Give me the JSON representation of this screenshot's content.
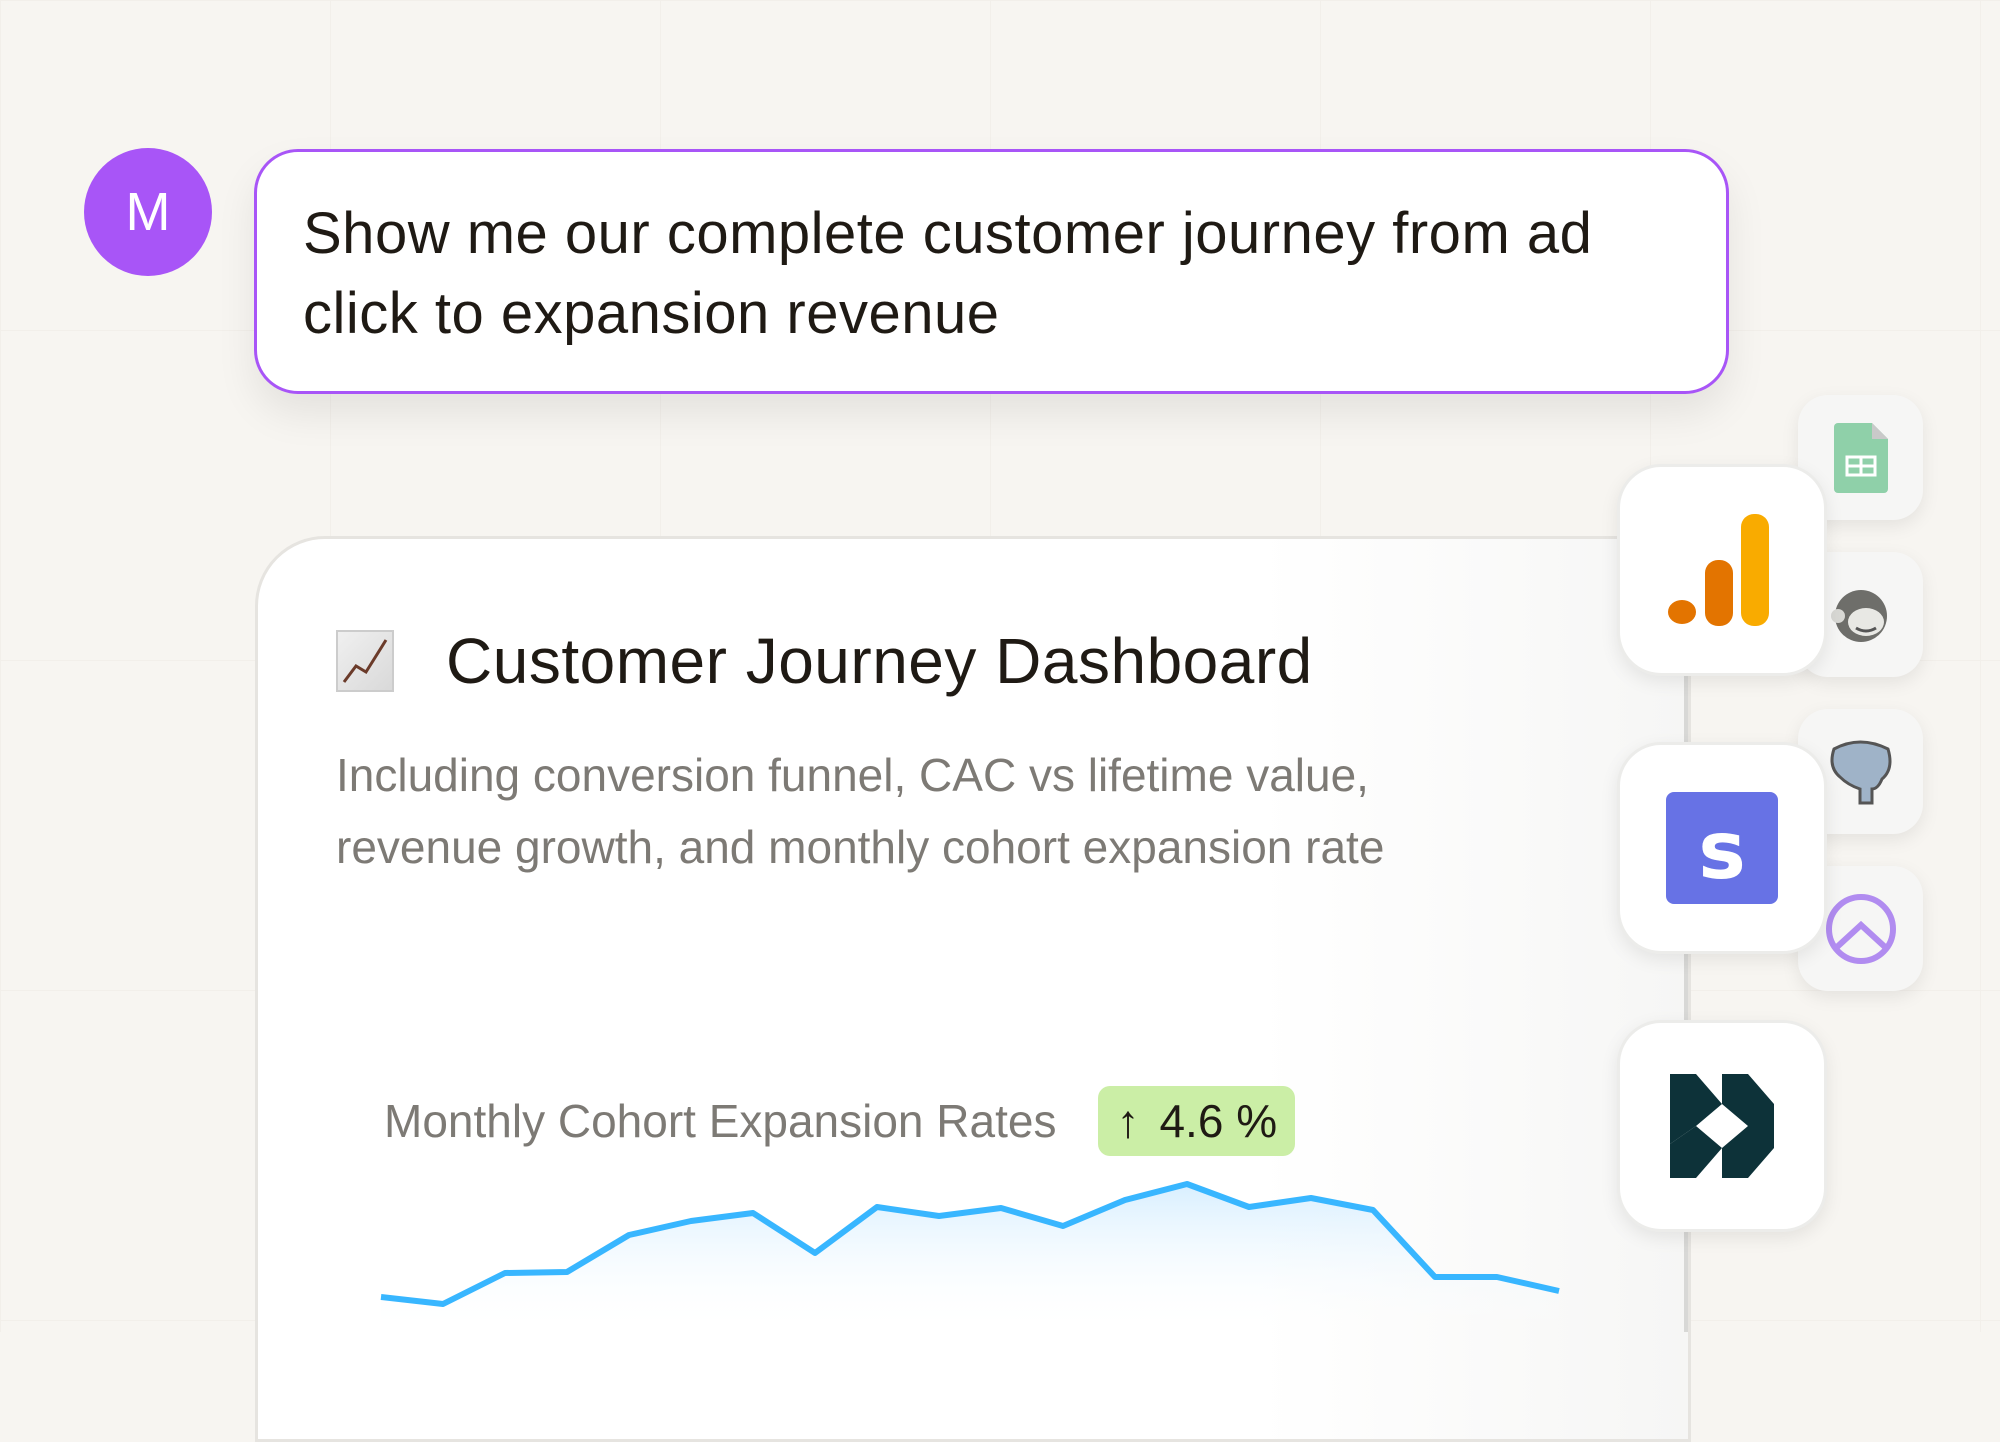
{
  "user": {
    "avatar_initial": "M",
    "avatar_color": "#a855f7"
  },
  "prompt": {
    "text": "Show me our complete customer journey from ad click to expansion revenue"
  },
  "card": {
    "icon": "chart-increasing-emoji",
    "title": "Customer Journey Dashboard",
    "subtitle": "Including conversion funnel, CAC vs lifetime value, revenue growth, and monthly cohort expansion rate"
  },
  "chart_data": {
    "type": "area",
    "title": "Monthly Cohort Expansion Rates",
    "badge": {
      "arrow": "↑",
      "value": "4.6 %",
      "color": "#cbeea6"
    },
    "values": [
      23,
      16,
      47,
      48,
      85,
      99,
      107,
      67,
      113,
      104,
      112,
      94,
      120,
      136,
      113,
      122,
      110,
      43,
      43,
      29
    ],
    "line_color": "#38b6ff",
    "grid": false
  },
  "integrations": {
    "large": [
      "google-analytics-icon",
      "stripe-icon",
      "hightouch-icon"
    ],
    "small": [
      "google-sheets-icon",
      "mailchimp-icon",
      "postgresql-icon",
      "hubspot-arrow-icon"
    ]
  }
}
